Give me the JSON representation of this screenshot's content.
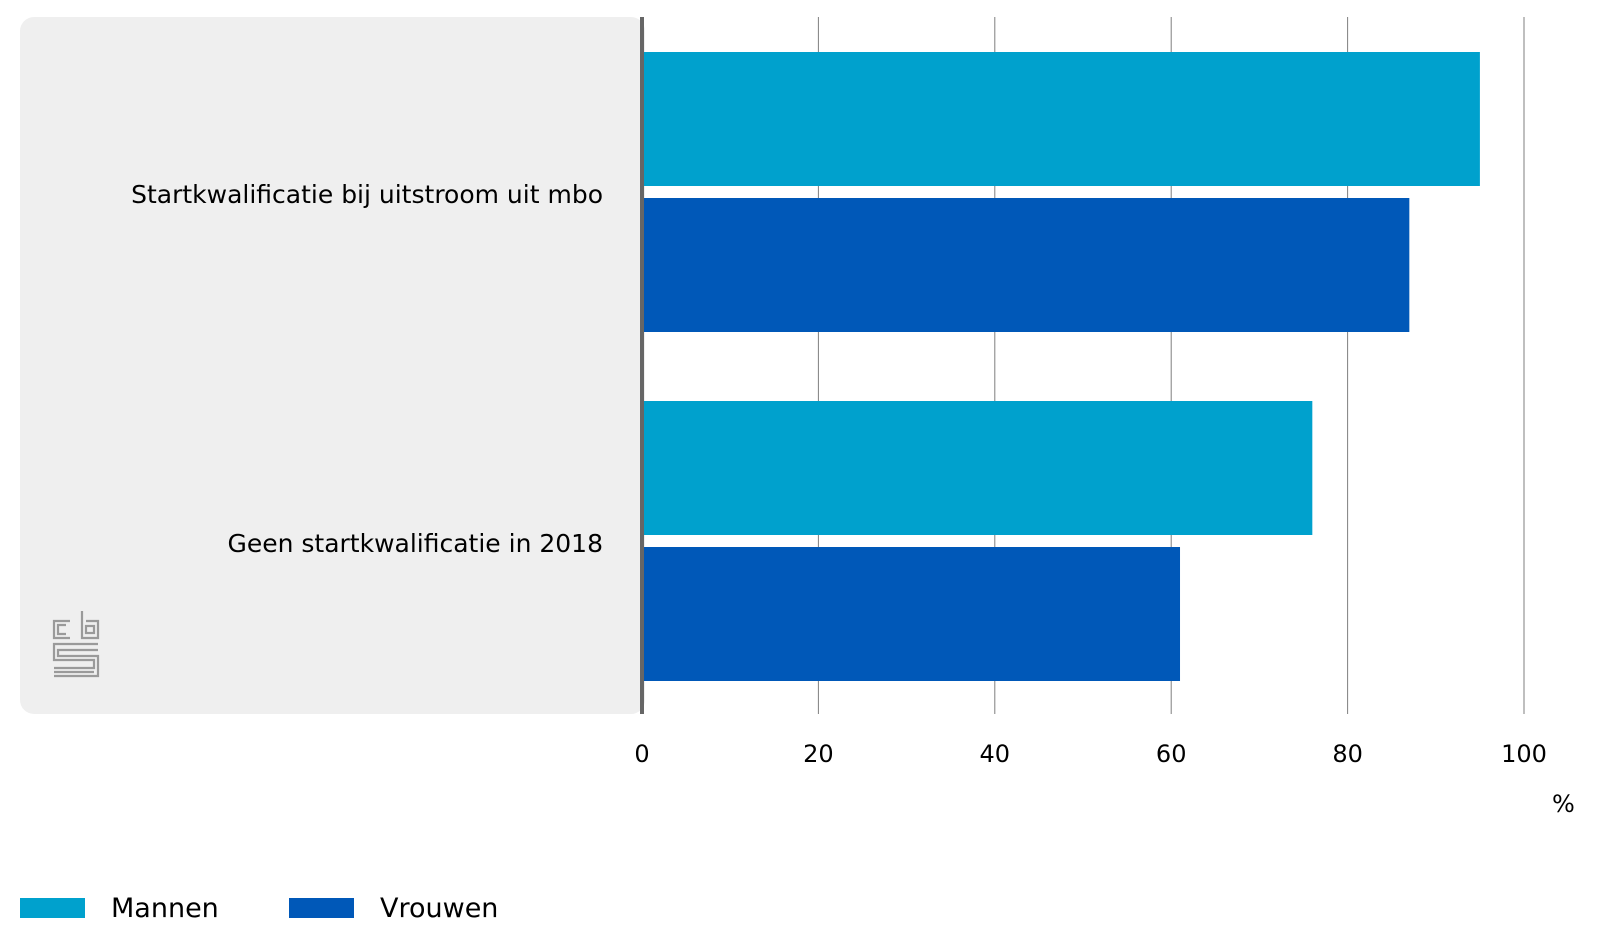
{
  "chart_data": {
    "type": "bar",
    "orientation": "horizontal",
    "categories": [
      "Startkwalificatie bij uitstroom uit mbo",
      "Geen startkwalificatie in 2018"
    ],
    "series": [
      {
        "name": "Mannen",
        "values": [
          95,
          76
        ],
        "color": "#00a1cd"
      },
      {
        "name": "Vrouwen",
        "values": [
          87,
          61
        ],
        "color": "#0058b8"
      }
    ],
    "x_ticks": [
      "0",
      "20",
      "40",
      "60",
      "80",
      "100"
    ],
    "xlim": [
      0,
      100
    ],
    "x_unit": "%",
    "grid": true,
    "legend": "bottom-left"
  },
  "colors": {
    "label_panel": "#efefef",
    "gridline": "#7f7f7f",
    "axis": "#666666",
    "logo": "#9a9a9a"
  },
  "logo_icon": "cbs-logo-icon"
}
